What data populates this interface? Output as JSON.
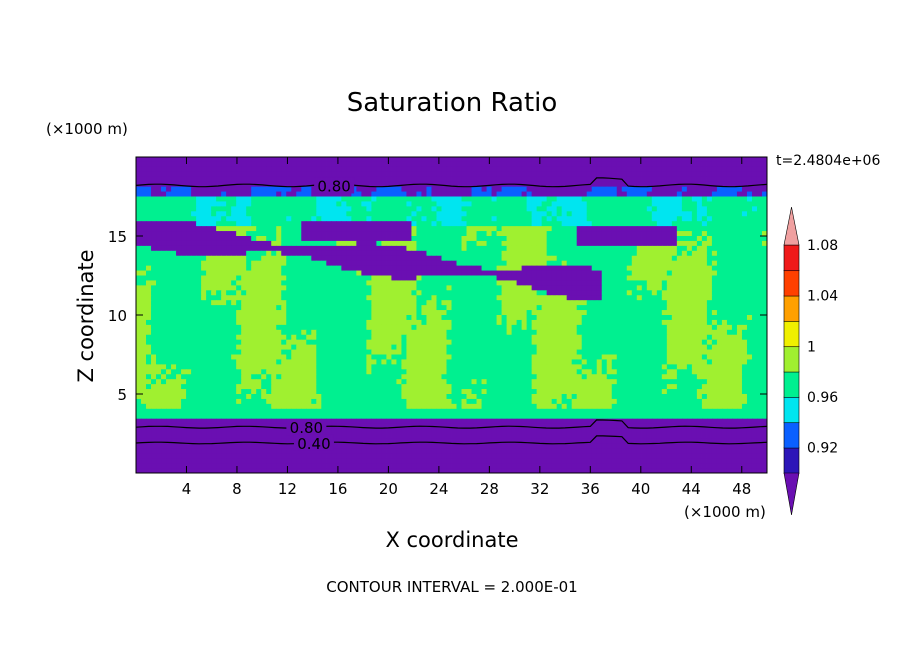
{
  "chart_data": {
    "type": "heatmap",
    "title": "Saturation Ratio",
    "xlabel": "X coordinate",
    "ylabel": "Z coordinate",
    "x_unit": "(×1000 m)",
    "y_unit": "(×1000 m)",
    "time_label": "t=2.4804e+06",
    "footer": "CONTOUR INTERVAL = 2.000E-01",
    "xlim": [
      0,
      50
    ],
    "ylim": [
      0,
      20
    ],
    "x_ticks": [
      4,
      8,
      12,
      16,
      20,
      24,
      28,
      32,
      36,
      40,
      44,
      48
    ],
    "y_ticks": [
      5,
      10,
      15
    ],
    "colorbar": {
      "levels": [
        0.92,
        0.94,
        0.96,
        0.98,
        1.0,
        1.02,
        1.04,
        1.06,
        1.08,
        1.1
      ],
      "tick_labels": [
        "0.92",
        "0.96",
        "1",
        "1.04",
        "1.08"
      ],
      "tick_values": [
        0.92,
        0.96,
        1.0,
        1.04,
        1.08
      ],
      "colors": [
        "#6a0fb2",
        "#2c16b8",
        "#0a60ff",
        "#00e5f0",
        "#00f090",
        "#a0f030",
        "#f0f000",
        "#ffa000",
        "#ff4000",
        "#f01a1a",
        "#f0a0a0"
      ]
    },
    "contour_labels": [
      {
        "text": "0.80",
        "x": 15.7,
        "z": 18.2
      },
      {
        "text": "0.80",
        "x": 13.5,
        "z": 2.9
      },
      {
        "text": "0.40",
        "x": 14.1,
        "z": 1.9
      }
    ],
    "regions": {
      "top_band": {
        "z": [
          18.2,
          20
        ],
        "value": 0.8
      },
      "upper_dry_layer": {
        "z": [
          15.5,
          18.2
        ],
        "value_range": [
          0.8,
          0.96
        ]
      },
      "dry_tongue": {
        "x": [
          0,
          37
        ],
        "z": [
          11.8,
          16
        ],
        "value_range": [
          0.8,
          0.92
        ]
      },
      "mid_layer": {
        "z": [
          3.3,
          15.5
        ],
        "value_range": [
          0.98,
          1.02
        ]
      },
      "bottom_band": {
        "z": [
          0,
          3.3
        ],
        "value_range": [
          0.4,
          0.8
        ]
      }
    }
  }
}
